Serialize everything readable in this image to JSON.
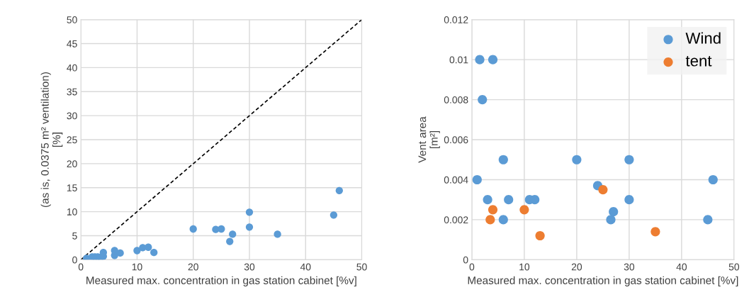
{
  "chart_data": [
    {
      "type": "scatter",
      "xlabel": "Measured max. concentration in gas station cabinet [%v]",
      "ylabel": "(as is, 0.0375 m² ventilation)\n[%]",
      "xlim": [
        0,
        50
      ],
      "ylim": [
        0,
        50
      ],
      "xticks": [
        0,
        10,
        20,
        30,
        40,
        50
      ],
      "yticks": [
        0,
        5,
        10,
        15,
        20,
        25,
        30,
        35,
        40,
        45,
        50
      ],
      "grid": true,
      "legend": false,
      "series": [
        {
          "marker": "circle",
          "color": "#5b9bd5",
          "x": [
            1,
            1.5,
            2,
            2.5,
            3,
            3.5,
            4,
            4,
            6,
            6,
            7,
            10,
            11,
            12,
            13,
            20,
            24,
            25,
            26.5,
            27,
            30,
            30,
            35,
            45,
            46
          ],
          "values": [
            0.3,
            null,
            0.6,
            0.6,
            0.6,
            0.5,
            0.7,
            1.5,
            0.9,
            1.9,
            1.4,
            1.9,
            2.5,
            2.6,
            1.5,
            6.4,
            6.3,
            6.4,
            3.8,
            5.3,
            9.9,
            6.8,
            5.3,
            9.3,
            14.4
          ]
        },
        {
          "type": "line",
          "marker": "none",
          "color": "#000000",
          "line_style": "dashed",
          "x": [
            0,
            50
          ],
          "values": [
            0,
            50
          ]
        }
      ]
    },
    {
      "type": "scatter",
      "xlabel": "Measured max. concentration in gas station cabinet [%v]",
      "ylabel": "Vent area\n[m²]",
      "xlim": [
        0,
        50
      ],
      "ylim": [
        0,
        0.012
      ],
      "xticks": [
        0,
        10,
        20,
        30,
        40,
        50
      ],
      "yticks": [
        0,
        0.002,
        0.004,
        0.006,
        0.008,
        0.01,
        0.012
      ],
      "grid": true,
      "marker": "circle",
      "legend": "top right",
      "series": [
        {
          "name": "Wind",
          "color": "#5b9bd5",
          "x": [
            1,
            1.5,
            4,
            2,
            3,
            6,
            6,
            7,
            11,
            12,
            20,
            24,
            30,
            30,
            27,
            26.5,
            46,
            45
          ],
          "values": [
            0.004,
            0.01,
            0.01,
            0.008,
            0.003,
            0.005,
            0.002,
            0.003,
            0.003,
            0.003,
            0.005,
            0.0037,
            0.005,
            0.003,
            0.0024,
            0.002,
            0.004,
            0.002
          ]
        },
        {
          "name": "tent",
          "color": "#ed7d31",
          "x": [
            3.5,
            4,
            10,
            13,
            25,
            35
          ],
          "values": [
            0.002,
            0.0025,
            0.0025,
            0.0012,
            0.0035,
            0.0014
          ]
        }
      ]
    }
  ]
}
